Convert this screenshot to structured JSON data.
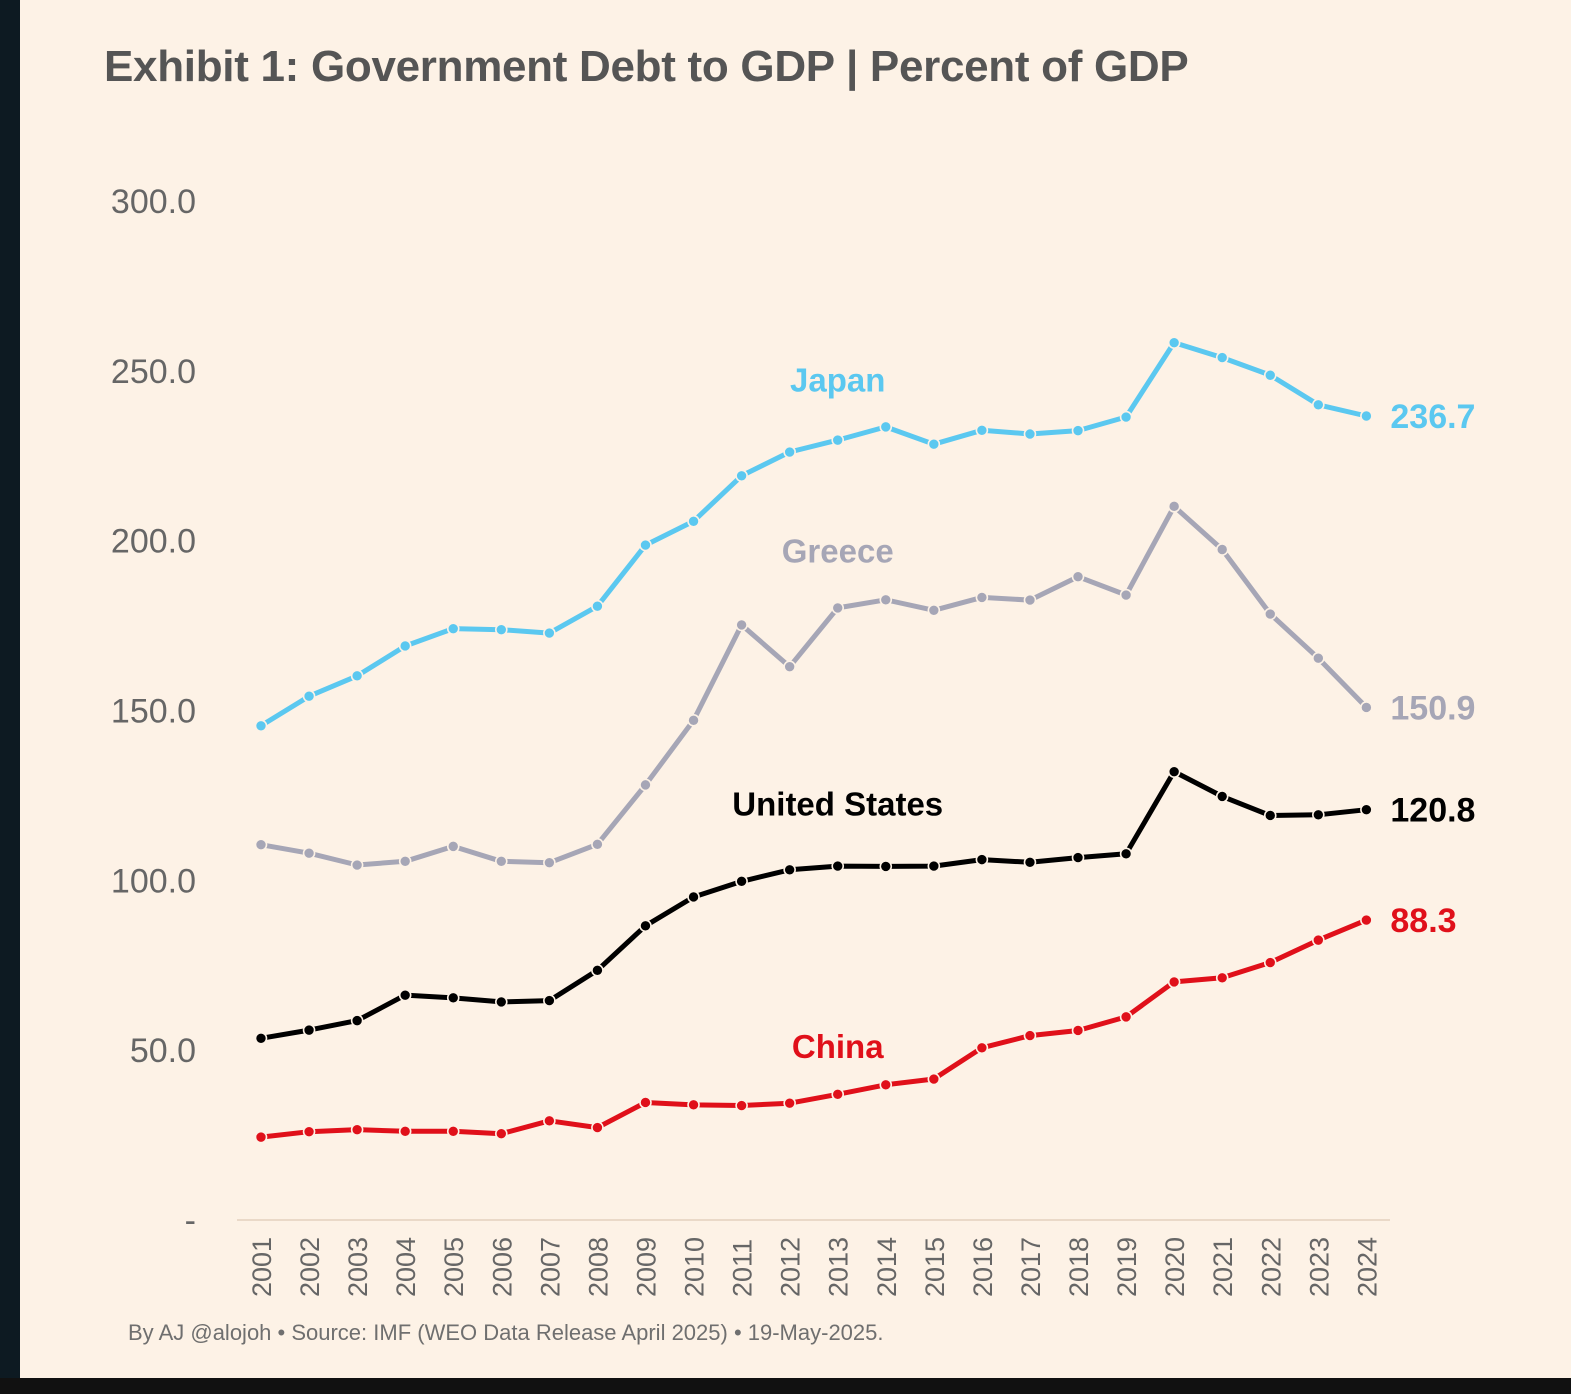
{
  "title": "Exhibit 1: Government Debt to GDP | Percent of GDP",
  "footer": "By AJ @alojoh • Source: IMF (WEO Data Release April 2025) • 19-May-2025.",
  "colors": {
    "background": "#fdf2e6",
    "japan": "#5bc8f0",
    "greece": "#a6a6b6",
    "united_states": "#000000",
    "china": "#e0101a"
  },
  "chart_data": {
    "type": "line",
    "title": "Exhibit 1: Government Debt to GDP | Percent of GDP",
    "xlabel": "",
    "ylabel": "",
    "ylim": [
      0,
      300
    ],
    "yticks": [
      {
        "value": 300,
        "label": "300.0"
      },
      {
        "value": 250,
        "label": "250.0"
      },
      {
        "value": 200,
        "label": "200.0"
      },
      {
        "value": 150,
        "label": "150.0"
      },
      {
        "value": 100,
        "label": "100.0"
      },
      {
        "value": 50,
        "label": "50.0"
      },
      {
        "value": 0,
        "label": "-"
      }
    ],
    "grid": false,
    "legend": "direct labels",
    "x": [
      "2001",
      "2002",
      "2003",
      "2004",
      "2005",
      "2006",
      "2007",
      "2008",
      "2009",
      "2010",
      "2011",
      "2012",
      "2013",
      "2014",
      "2015",
      "2016",
      "2017",
      "2018",
      "2019",
      "2020",
      "2021",
      "2022",
      "2023",
      "2024"
    ],
    "series": [
      {
        "key": "japan",
        "name": "Japan",
        "color": "#5bc8f0",
        "end_label": "236.7",
        "label_index": 12,
        "label_offset": 9,
        "values": [
          145.5,
          154.2,
          160.2,
          169.0,
          174.1,
          173.8,
          172.8,
          180.7,
          198.7,
          205.7,
          219.1,
          226.1,
          229.6,
          233.5,
          228.4,
          232.5,
          231.4,
          232.4,
          236.4,
          258.3,
          253.9,
          248.7,
          240.0,
          236.7
        ]
      },
      {
        "key": "greece",
        "name": "Greece",
        "color": "#a6a6b6",
        "end_label": "150.9",
        "label_index": 12,
        "label_offset": 8,
        "values": [
          110.5,
          108.0,
          104.5,
          105.6,
          110.0,
          105.6,
          105.2,
          110.6,
          128.1,
          147.1,
          175.2,
          162.9,
          180.2,
          182.6,
          179.5,
          183.3,
          182.5,
          189.4,
          184.0,
          210.1,
          197.4,
          178.4,
          165.4,
          150.9
        ]
      },
      {
        "key": "united_states",
        "name": "United States",
        "color": "#000000",
        "end_label": "120.8",
        "label_index": 12,
        "label_offset": 9,
        "values": [
          53.5,
          55.9,
          58.7,
          66.2,
          65.4,
          64.2,
          64.6,
          73.5,
          86.6,
          95.1,
          99.7,
          103.1,
          104.2,
          104.1,
          104.2,
          106.1,
          105.3,
          106.7,
          107.8,
          132.0,
          124.7,
          119.1,
          119.3,
          120.8
        ]
      },
      {
        "key": "china",
        "name": "China",
        "color": "#e0101a",
        "end_label": "88.3",
        "label_index": 12,
        "label_offset": 6,
        "values": [
          24.4,
          26.0,
          26.6,
          26.1,
          26.1,
          25.4,
          29.2,
          27.2,
          34.6,
          33.9,
          33.7,
          34.4,
          37.0,
          39.8,
          41.5,
          50.7,
          54.3,
          55.8,
          59.8,
          70.1,
          71.3,
          75.8,
          82.4,
          88.3
        ]
      }
    ]
  }
}
